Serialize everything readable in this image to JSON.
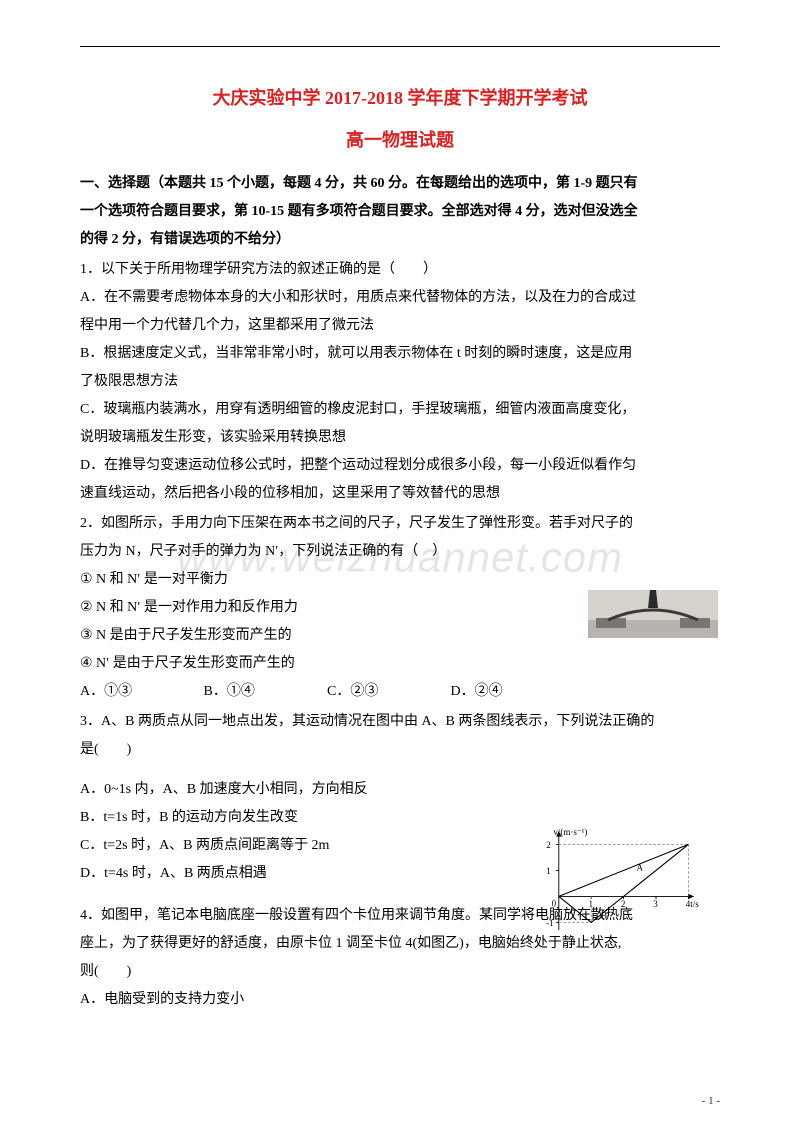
{
  "title_line1": "大庆实验中学 2017-2018 学年度下学期开学考试",
  "title_line2": "高一物理试题",
  "title_color": "#d72323",
  "section_intro_l1": "一、选择题（本题共 15 个小题，每题 4 分，共 60 分。在每题给出的选项中，第 1-9 题只有",
  "section_intro_l2": "一个选项符合题目要求，第 10-15 题有多项符合题目要求。全部选对得 4 分，选对但没选全",
  "section_intro_l3": "的得 2 分，有错误选项的不给分）",
  "q1_stem": "1．以下关于所用物理学研究方法的叙述正确的是（　　）",
  "q1_A_l1": "A．在不需要考虑物体本身的大小和形状时，用质点来代替物体的方法，以及在力的合成过",
  "q1_A_l2": "程中用一个力代替几个力，这里都采用了微元法",
  "q1_B_l1": "B．根据速度定义式，当非常非常小时，就可以用表示物体在 t 时刻的瞬时速度，这是应用",
  "q1_B_l2": "了极限思想方法",
  "q1_C_l1": "C．玻璃瓶内装满水，用穿有透明细管的橡皮泥封口，手捏玻璃瓶，细管内液面高度变化，",
  "q1_C_l2": "说明玻璃瓶发生形变，该实验采用转换思想",
  "q1_D_l1": "D．在推导匀变速运动位移公式时，把整个运动过程划分成很多小段，每一小段近似看作匀",
  "q1_D_l2": "速直线运动，然后把各小段的位移相加，这里采用了等效替代的思想",
  "q2_stem_l1": "2．如图所示，手用力向下压架在两本书之间的尺子，尺子发生了弹性形变。若手对尺子的",
  "q2_stem_l2": "压力为 N，尺子对手的弹力为 N′，下列说法正确的有（　）",
  "q2_s1": "① N 和 N′ 是一对平衡力",
  "q2_s2": "② N 和 N′ 是一对作用力和反作用力",
  "q2_s3": "③ N 是由于尺子发生形变而产生的",
  "q2_s4": "④ N′ 是由于尺子发生形变而产生的",
  "q2_optA": "A．①③",
  "q2_optB": "B．①④",
  "q2_optC": "C．②③",
  "q2_optD": "D．②④",
  "q3_stem_l1": "3．A、B 两质点从同一地点出发，其运动情况在图中由 A、B 两条图线表示，下列说法正确的",
  "q3_stem_l2": "是(　　)",
  "q3_A": "A．0~1s 内，A、B 加速度大小相同，方向相反",
  "q3_B": "B．t=1s 时，B 的运动方向发生改变",
  "q3_C": "C．t=2s 时，A、B 两质点间距离等于 2m",
  "q3_D": "D．t=4s 时，A、B 两质点相遇",
  "q4_stem_l1": "4．如图甲，笔记本电脑底座一般设置有四个卡位用来调节角度。某同学将电脑放在散热底",
  "q4_stem_l2": "座上，为了获得更好的舒适度，由原卡位 1 调至卡位 4(如图乙)，电脑始终处于静止状态,",
  "q4_stem_l3": "则(　　)",
  "q4_A": "A．电脑受到的支持力变小",
  "watermark": "www.weizhuannet.com",
  "page_number": "- 1 -",
  "chart": {
    "type": "line",
    "xlabel": "t/s",
    "ylabel": "v/(m·s⁻¹)",
    "xlim": [
      0,
      4
    ],
    "ylim": [
      -1.3,
      2.3
    ],
    "xticks": [
      0,
      1,
      2,
      3,
      4
    ],
    "yticks": [
      -1,
      0,
      1,
      2
    ],
    "series_A": {
      "label": "A",
      "points": [
        [
          0,
          0
        ],
        [
          4,
          2
        ]
      ],
      "color": "#000000"
    },
    "series_B": {
      "label": "B",
      "points": [
        [
          0,
          0
        ],
        [
          1,
          -1
        ],
        [
          4,
          2
        ]
      ],
      "color": "#000000"
    },
    "axis_color": "#000000",
    "dash_color": "#666666",
    "font_size": 10
  },
  "ruler_img": {
    "bg": "#d6d2cc",
    "table": "#b8b4ad",
    "ruler": "#5a5550"
  }
}
